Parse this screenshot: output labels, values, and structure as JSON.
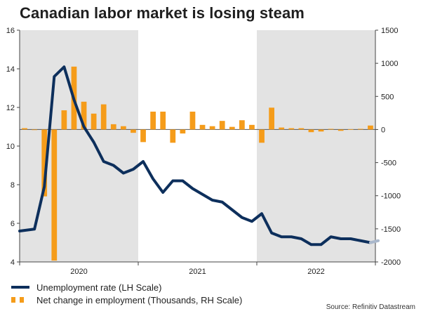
{
  "title": "Canadian labor market is losing steam",
  "source": "Source: Refinitiv Datastream",
  "colors": {
    "rate_line": "#0d2f5c",
    "rate_line_projection": "#aab8cc",
    "bars": "#f59c1a",
    "shade": "#e3e3e3",
    "axis": "#444444"
  },
  "legend": [
    {
      "label": "Unemployment rate (LH Scale)",
      "kind": "line"
    },
    {
      "label": "Net change in employment (Thousands, RH Scale)",
      "kind": "bars"
    }
  ],
  "chart_data": {
    "type": "bar+line",
    "title": "Canadian labor market is losing steam",
    "x_labels": [
      "2020",
      "2021",
      "2022"
    ],
    "periods": [
      "2020-01",
      "2020-02",
      "2020-03",
      "2020-04",
      "2020-05",
      "2020-06",
      "2020-07",
      "2020-08",
      "2020-09",
      "2020-10",
      "2020-11",
      "2020-12",
      "2021-01",
      "2021-02",
      "2021-03",
      "2021-04",
      "2021-05",
      "2021-06",
      "2021-07",
      "2021-08",
      "2021-09",
      "2021-10",
      "2021-11",
      "2021-12",
      "2022-01",
      "2022-02",
      "2022-03",
      "2022-04",
      "2022-05",
      "2022-06",
      "2022-07",
      "2022-08",
      "2022-09",
      "2022-10",
      "2022-11",
      "2022-12"
    ],
    "shaded_years": [
      "2020",
      "2022"
    ],
    "y_left": {
      "label": "Unemployment rate (LH Scale)",
      "min": 4,
      "max": 16,
      "ticks": [
        4,
        6,
        8,
        10,
        12,
        14,
        16
      ]
    },
    "y_right": {
      "label": "Net change in employment (Thousands, RH Scale)",
      "min": -2000,
      "max": 1500,
      "ticks": [
        -2000,
        -1500,
        -1000,
        -500,
        0,
        500,
        1000,
        1500
      ]
    },
    "series": [
      {
        "name": "Unemployment rate (LH Scale)",
        "axis": "left",
        "type": "line",
        "values": [
          5.6,
          5.7,
          7.9,
          13.6,
          14.1,
          12.4,
          11.0,
          10.2,
          9.2,
          9.0,
          8.6,
          8.8,
          9.2,
          8.3,
          7.6,
          8.2,
          8.2,
          7.8,
          7.5,
          7.2,
          7.1,
          6.7,
          6.3,
          6.1,
          6.5,
          5.5,
          5.3,
          5.3,
          5.2,
          4.9,
          4.9,
          5.3,
          5.2,
          5.2,
          5.1,
          5.0
        ],
        "projection": [
          5.0,
          5.1
        ]
      },
      {
        "name": "Net change in employment (Thousands, RH Scale)",
        "axis": "right",
        "type": "bar",
        "values": [
          20,
          0,
          -1010,
          -1980,
          290,
          950,
          420,
          240,
          380,
          80,
          50,
          -50,
          -190,
          270,
          270,
          -200,
          -60,
          270,
          70,
          50,
          130,
          40,
          140,
          70,
          -200,
          330,
          30,
          20,
          20,
          -40,
          -30,
          10,
          -20,
          5,
          10,
          60
        ]
      }
    ]
  }
}
